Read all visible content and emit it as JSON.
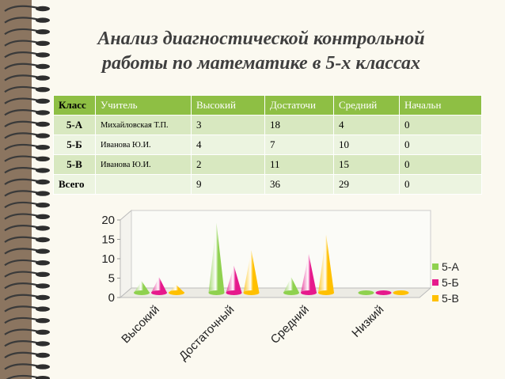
{
  "title_line1": "Анализ диагностической контрольной",
  "title_line2": "работы по математике в 5-х классах",
  "table": {
    "headers": [
      "Класс",
      "Учитель",
      "Высокий",
      "Достаточи",
      "Средний",
      "Начальн"
    ],
    "rows": [
      [
        "5-А",
        "Михайловская Т.П.",
        "3",
        "18",
        "4",
        "0"
      ],
      [
        "5-Б",
        "Иванова Ю.И.",
        "4",
        "7",
        "10",
        "0"
      ],
      [
        "5-В",
        "Иванова Ю.И.",
        "2",
        "11",
        "15",
        "0"
      ],
      [
        "Всего",
        "",
        "9",
        "36",
        "29",
        "0"
      ]
    ]
  },
  "chart_data": {
    "type": "bar",
    "categories": [
      "Высокий",
      "Достаточный",
      "Средний",
      "Низкий"
    ],
    "series": [
      {
        "name": "5-А",
        "values": [
          3,
          18,
          4,
          0
        ],
        "color": "#8fd14f"
      },
      {
        "name": "5-Б",
        "values": [
          4,
          7,
          10,
          0
        ],
        "color": "#e6198c"
      },
      {
        "name": "5-В",
        "values": [
          2,
          11,
          15,
          0
        ],
        "color": "#ffc000"
      }
    ],
    "yticks": [
      "0",
      "5",
      "10",
      "15",
      "20"
    ],
    "ylim": [
      0,
      20
    ],
    "legend_position": "right",
    "grid": false,
    "shape": "cone"
  }
}
